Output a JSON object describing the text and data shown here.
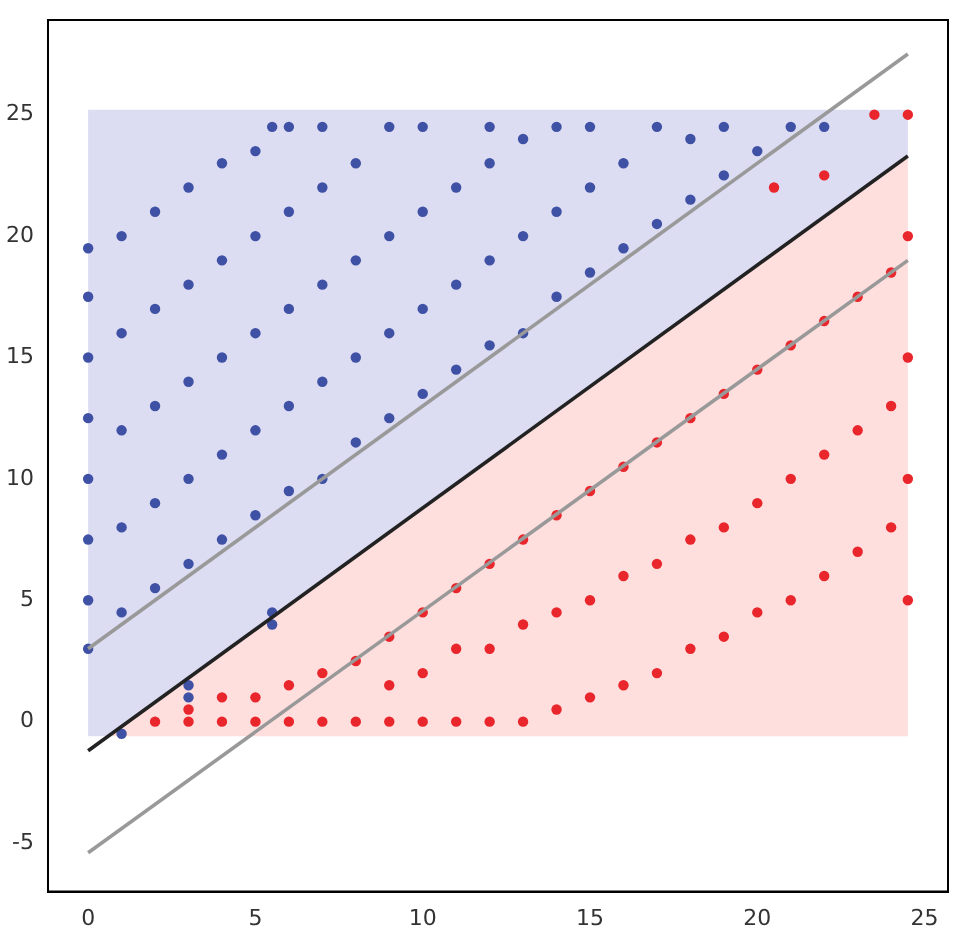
{
  "chart_data": {
    "type": "scatter",
    "xlim": [
      -1.2,
      25.7
    ],
    "ylim": [
      -7,
      28.9
    ],
    "xticks": [
      0,
      5,
      10,
      15,
      20,
      25
    ],
    "yticks": [
      -5,
      0,
      5,
      10,
      15,
      20,
      25
    ],
    "grid": false,
    "legend": false,
    "marker": "circle",
    "series": [
      {
        "type": "area",
        "marker": "none",
        "color": "#dcdcf2",
        "x": [
          0,
          24.5,
          24.5,
          0.6,
          0
        ],
        "values": [
          25.2,
          25.2,
          23.3,
          -0.6,
          -0.6
        ]
      },
      {
        "type": "area",
        "marker": "none",
        "color": "#ffdede",
        "x": [
          0.6,
          24.5,
          24.5
        ],
        "values": [
          -0.6,
          23.3,
          -0.6
        ]
      },
      {
        "color": "#3f51a5",
        "x": [
          0,
          0,
          0,
          0,
          0,
          0,
          0,
          0,
          1,
          1,
          1,
          1,
          1,
          1,
          2,
          2,
          2,
          2,
          2,
          3,
          3,
          3,
          3,
          3,
          3,
          3,
          4,
          4,
          4,
          4,
          4,
          5,
          5,
          5,
          5,
          5,
          5.5,
          5.5,
          5.5,
          6,
          6,
          6,
          6,
          6,
          7,
          7,
          7,
          7,
          7,
          8,
          8,
          8,
          8,
          9,
          9,
          9,
          9,
          10,
          10,
          10,
          10,
          11,
          11,
          11,
          12,
          12,
          12,
          12,
          13,
          13,
          13,
          14,
          14,
          14,
          15,
          15,
          15,
          16,
          16,
          17,
          17,
          18,
          18,
          19,
          19,
          20,
          21,
          22
        ],
        "values": [
          3,
          5,
          7.5,
          10,
          12.5,
          15,
          17.5,
          19.5,
          -0.5,
          4.5,
          8,
          12,
          16,
          20,
          5.5,
          9,
          13,
          17,
          21,
          1,
          1.5,
          6.5,
          10,
          14,
          18,
          22,
          7.5,
          11,
          15,
          19,
          23,
          8.5,
          12,
          16,
          20,
          23.5,
          4,
          4.5,
          24.5,
          9.5,
          13,
          17,
          21,
          24.5,
          10,
          14,
          18,
          22,
          24.5,
          11.5,
          15,
          19,
          23,
          12.5,
          16,
          20,
          24.5,
          13.5,
          17,
          21,
          24.5,
          14.5,
          18,
          22,
          15.5,
          19,
          23,
          24.5,
          16,
          20,
          24,
          17.5,
          21,
          24.5,
          18.5,
          22,
          24.5,
          19.5,
          23,
          20.5,
          24.5,
          21.5,
          24,
          22.5,
          24.5,
          23.5,
          24.5,
          24.5
        ]
      },
      {
        "color": "#e8262b",
        "x": [
          2,
          3,
          3,
          4,
          4,
          5,
          5,
          6,
          6,
          7,
          7,
          8,
          8,
          9,
          9,
          9,
          10,
          10,
          10,
          11,
          11,
          11,
          12,
          12,
          12,
          13,
          13,
          13,
          14,
          14,
          14,
          15,
          15,
          15,
          16,
          16,
          16,
          17,
          17,
          17,
          18,
          18,
          18,
          19,
          19,
          19,
          20,
          20,
          20,
          20.5,
          21,
          21,
          21,
          22,
          22,
          22,
          22,
          23,
          23,
          23,
          23.5,
          24,
          24,
          24,
          24.5,
          24.5,
          24.5,
          24.5,
          24.5
        ],
        "values": [
          0,
          0,
          0.5,
          0,
          1,
          0,
          1,
          0,
          1.5,
          0,
          2,
          0,
          2.5,
          0,
          1.5,
          3.5,
          0,
          2,
          4.5,
          0,
          3,
          5.5,
          0,
          3,
          6.5,
          0,
          4,
          7.5,
          0.5,
          4.5,
          8.5,
          1,
          5,
          9.5,
          1.5,
          6,
          10.5,
          2,
          6.5,
          11.5,
          3,
          7.5,
          12.5,
          3.5,
          8,
          13.5,
          4.5,
          9,
          14.5,
          22,
          5,
          10,
          15.5,
          6,
          11,
          16.5,
          22.5,
          7,
          12,
          17.5,
          25,
          8,
          13,
          18.5,
          5,
          10,
          15,
          20,
          25
        ]
      },
      {
        "type": "line",
        "marker": "none",
        "color": "#999999",
        "x": [
          0,
          24.5
        ],
        "values": [
          3,
          27.5
        ]
      },
      {
        "type": "line",
        "marker": "none",
        "color": "#222222",
        "x": [
          0,
          24.5
        ],
        "values": [
          -1.2,
          23.3
        ]
      },
      {
        "type": "line",
        "marker": "none",
        "color": "#999999",
        "x": [
          0,
          24.5
        ],
        "values": [
          -5.4,
          19
        ]
      }
    ]
  }
}
